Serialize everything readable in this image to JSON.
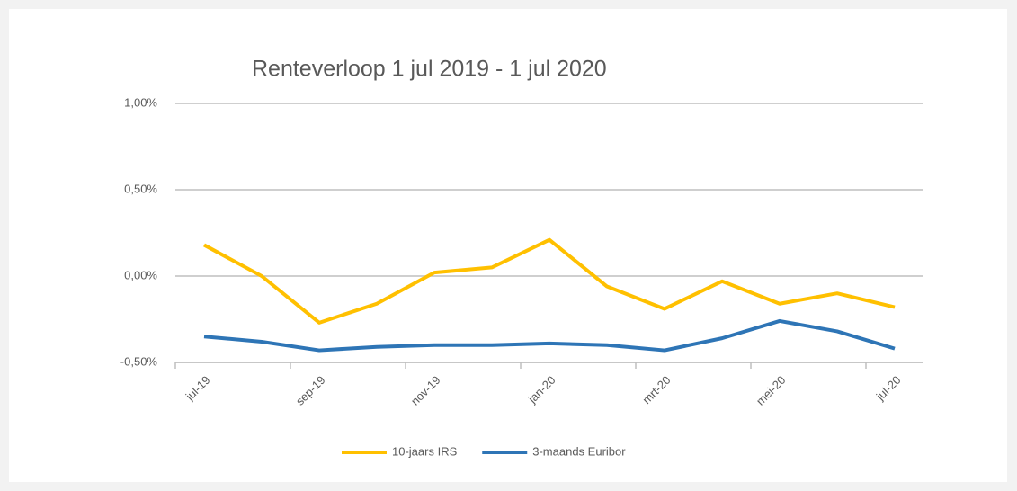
{
  "chart_data": {
    "type": "line",
    "title": "Renteverloop 1 jul 2019 - 1 jul 2020",
    "categories": [
      "jul-19",
      null,
      "sep-19",
      null,
      "nov-19",
      null,
      "jan-20",
      null,
      "mrt-20",
      null,
      "mei-20",
      null,
      "jul-20"
    ],
    "series": [
      {
        "name": "10-jaars IRS",
        "color": "#FFC000",
        "values": [
          0.18,
          0.0,
          -0.27,
          -0.16,
          0.02,
          0.05,
          0.21,
          -0.06,
          -0.19,
          -0.03,
          -0.16,
          -0.1,
          -0.18
        ]
      },
      {
        "name": "3-maands Euribor",
        "color": "#2E75B6",
        "values": [
          -0.35,
          -0.38,
          -0.43,
          -0.41,
          -0.4,
          -0.4,
          -0.39,
          -0.4,
          -0.43,
          -0.36,
          -0.26,
          -0.32,
          -0.42
        ]
      }
    ],
    "ylim": [
      -0.5,
      1
    ],
    "yticks": [
      {
        "value": -0.5,
        "label": "-0,50%"
      },
      {
        "value": 0,
        "label": "0,00%"
      },
      {
        "value": 0.5,
        "label": "0,50%"
      },
      {
        "value": 1,
        "label": "1,00%"
      }
    ],
    "grid": true,
    "legend": "bottom"
  }
}
